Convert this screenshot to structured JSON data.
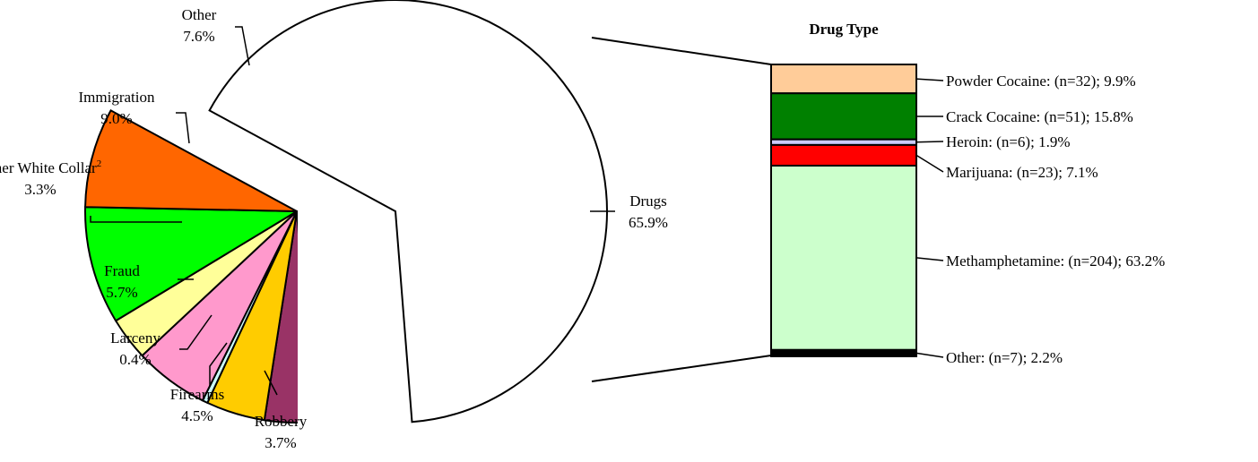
{
  "chart_data": [
    {
      "type": "pie",
      "categories": [
        "Drugs",
        "Robbery",
        "Firearms",
        "Larceny",
        "Fraud",
        "Other White Collar",
        "Immigration",
        "Other"
      ],
      "values": [
        65.9,
        3.7,
        4.5,
        0.4,
        5.7,
        3.3,
        9.0,
        7.6
      ],
      "value_labels": [
        "65.9%",
        "3.7%",
        "4.5%",
        "0.4%",
        "5.7%",
        "3.3%",
        "9.0%",
        "7.6%"
      ],
      "superscripts": [
        "",
        "",
        "",
        "",
        "",
        "2",
        "",
        ""
      ],
      "colors": [
        "#FFFFFF",
        "#993366",
        "#FFCC00",
        "#CCFFFF",
        "#FF99CC",
        "#FFFF99",
        "#00FF00",
        "#FF6600"
      ],
      "exploded": "Drugs"
    },
    {
      "type": "bar",
      "stacked": true,
      "title": "Drug Type",
      "categories": [
        "Powder Cocaine",
        "Crack Cocaine",
        "Heroin",
        "Marijuana",
        "Methamphetamine",
        "Other"
      ],
      "n": [
        32,
        51,
        6,
        23,
        204,
        7
      ],
      "values": [
        9.9,
        15.8,
        1.9,
        7.1,
        63.2,
        2.2
      ],
      "labels": [
        "Powder Cocaine: (n=32); 9.9%",
        "Crack Cocaine: (n=51); 15.8%",
        "Heroin: (n=6); 1.9%",
        "Marijuana: (n=23); 7.1%",
        "Methamphetamine: (n=204); 63.2%",
        "Other: (n=7); 2.2%"
      ],
      "colors": [
        "#FFCC99",
        "#008000",
        "#CCCCFF",
        "#FF0000",
        "#CCFFCC",
        "#000000"
      ]
    }
  ]
}
